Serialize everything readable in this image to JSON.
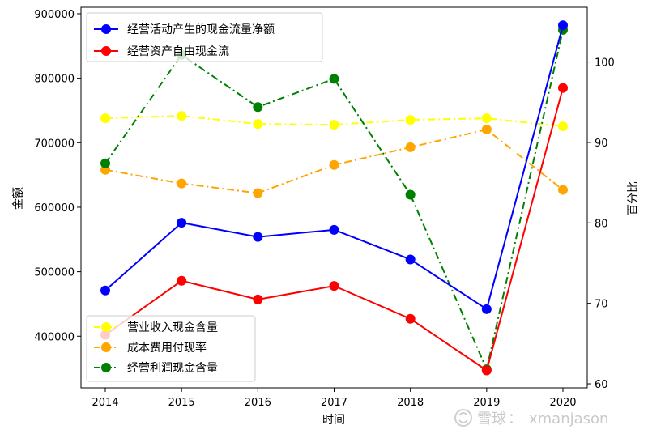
{
  "chart_data": {
    "type": "line",
    "x_label": "时间",
    "y_left_label": "金额",
    "y_right_label": "百分比",
    "x": [
      "2014",
      "2015",
      "2016",
      "2017",
      "2018",
      "2019",
      "2020"
    ],
    "y_left_range": [
      320000,
      910000
    ],
    "y_right_range": [
      59.5,
      106.8
    ],
    "y_left_ticks": [
      "400000",
      "500000",
      "600000",
      "700000",
      "800000",
      "900000"
    ],
    "y_right_ticks": [
      "60",
      "70",
      "80",
      "90",
      "100"
    ],
    "left_series": [
      {
        "name": "经营活动产生的现金流量净额",
        "color": "#0000ff",
        "style": "solid",
        "values": [
          471000,
          576000,
          554000,
          565000,
          519000,
          442000,
          882000
        ]
      },
      {
        "name": "经营资产自由现金流",
        "color": "#ff0000",
        "style": "solid",
        "values": [
          402000,
          486000,
          457000,
          478000,
          427000,
          347000,
          785000
        ]
      }
    ],
    "right_series": [
      {
        "name": "营业收入现金含量",
        "color": "#ffff00",
        "style": "dashdot",
        "values": [
          93.0,
          93.3,
          92.3,
          92.2,
          92.8,
          93.0,
          92.0
        ]
      },
      {
        "name": "成本费用付现率",
        "color": "#ffa500",
        "style": "dashdot",
        "values": [
          86.6,
          84.9,
          83.7,
          87.2,
          89.4,
          91.6,
          84.1
        ]
      },
      {
        "name": "经营利润现金含量",
        "color": "#008000",
        "style": "dashdot",
        "values": [
          87.4,
          100.9,
          94.4,
          97.9,
          83.5,
          61.8,
          104.0
        ]
      }
    ],
    "legend_upper_placement": "top-left",
    "legend_lower_placement": "bottom-left",
    "grid": false
  },
  "watermark": {
    "brand": "雪球",
    "separator": "：",
    "user": "xmanjason"
  }
}
